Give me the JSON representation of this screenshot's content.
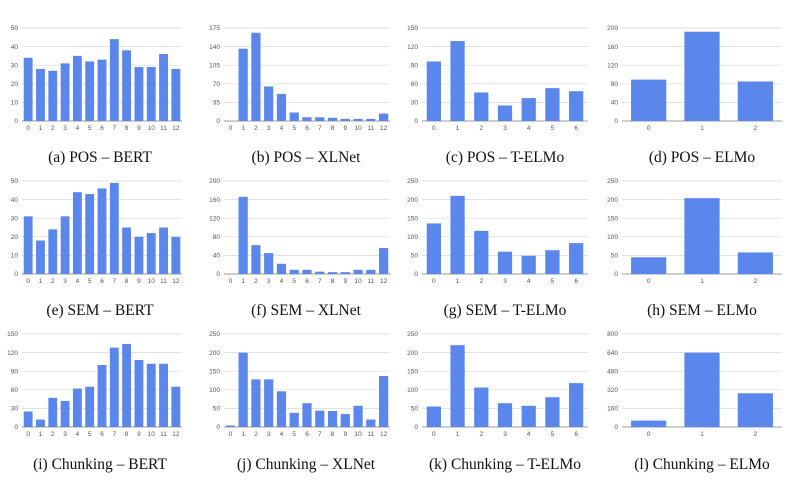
{
  "colors": {
    "bar": "#5b87ec",
    "grid": "#d9d9d9",
    "tick": "#555555",
    "caption": "#111111"
  },
  "chart_data": [
    {
      "type": "bar",
      "caption": "(a) POS – BERT",
      "categories": [
        "0",
        "1",
        "2",
        "3",
        "4",
        "5",
        "6",
        "7",
        "8",
        "9",
        "10",
        "11",
        "12"
      ],
      "values": [
        34,
        28,
        27,
        31,
        35,
        32,
        33,
        44,
        38,
        29,
        29,
        36,
        28
      ],
      "yticks": [
        0,
        10,
        20,
        30,
        40,
        50
      ],
      "ylim": [
        0,
        50
      ],
      "grid": true
    },
    {
      "type": "bar",
      "caption": "(b) POS – XLNet",
      "categories": [
        "0",
        "1",
        "2",
        "3",
        "4",
        "5",
        "6",
        "7",
        "8",
        "9",
        "10",
        "11",
        "12"
      ],
      "values": [
        0,
        136,
        166,
        65,
        51,
        16,
        7,
        7,
        6,
        4,
        4,
        4,
        14
      ],
      "yticks": [
        0,
        35,
        70,
        105,
        140,
        175
      ],
      "ylim": [
        0,
        175
      ],
      "grid": true
    },
    {
      "type": "bar",
      "caption": "(c) POS – T-ELMo",
      "categories": [
        "0",
        "1",
        "2",
        "3",
        "4",
        "5",
        "6"
      ],
      "values": [
        96,
        129,
        46,
        25,
        37,
        53,
        48
      ],
      "yticks": [
        0,
        30,
        60,
        90,
        120,
        150
      ],
      "ylim": [
        0,
        150
      ],
      "grid": true
    },
    {
      "type": "bar",
      "caption": "(d) POS – ELMo",
      "categories": [
        "0",
        "1",
        "2"
      ],
      "values": [
        89,
        192,
        85
      ],
      "yticks": [
        0,
        40,
        80,
        120,
        160,
        200
      ],
      "ylim": [
        0,
        200
      ],
      "grid": true
    },
    {
      "type": "bar",
      "caption": "(e) SEM – BERT",
      "categories": [
        "0",
        "1",
        "2",
        "3",
        "4",
        "5",
        "6",
        "7",
        "8",
        "9",
        "10",
        "11",
        "12"
      ],
      "values": [
        31,
        18,
        24,
        31,
        44,
        43,
        46,
        49,
        25,
        20,
        22,
        25,
        20
      ],
      "yticks": [
        0,
        10,
        20,
        30,
        40,
        50
      ],
      "ylim": [
        0,
        50
      ],
      "grid": true
    },
    {
      "type": "bar",
      "caption": "(f) SEM – XLNet",
      "categories": [
        "0",
        "1",
        "2",
        "3",
        "4",
        "5",
        "6",
        "7",
        "8",
        "9",
        "10",
        "11",
        "12"
      ],
      "values": [
        0,
        166,
        62,
        45,
        22,
        9,
        9,
        5,
        4,
        4,
        9,
        9,
        56
      ],
      "yticks": [
        0,
        40,
        80,
        120,
        160,
        200
      ],
      "ylim": [
        0,
        200
      ],
      "grid": true
    },
    {
      "type": "bar",
      "caption": "(g) SEM – T-ELMo",
      "categories": [
        "0",
        "1",
        "2",
        "3",
        "4",
        "5",
        "6"
      ],
      "values": [
        136,
        210,
        116,
        60,
        49,
        64,
        83
      ],
      "yticks": [
        0,
        50,
        100,
        150,
        200,
        250
      ],
      "ylim": [
        0,
        250
      ],
      "grid": true
    },
    {
      "type": "bar",
      "caption": "(h) SEM – ELMo",
      "categories": [
        "0",
        "1",
        "2"
      ],
      "values": [
        45,
        204,
        58
      ],
      "yticks": [
        0,
        50,
        100,
        150,
        200,
        250
      ],
      "ylim": [
        0,
        250
      ],
      "grid": true
    },
    {
      "type": "bar",
      "caption": "(i) Chunking – BERT",
      "categories": [
        "0",
        "1",
        "2",
        "3",
        "4",
        "5",
        "6",
        "7",
        "8",
        "9",
        "10",
        "11",
        "12"
      ],
      "values": [
        25,
        12,
        47,
        42,
        62,
        65,
        100,
        128,
        134,
        108,
        102,
        102,
        65
      ],
      "yticks": [
        0,
        30,
        60,
        90,
        120,
        150
      ],
      "ylim": [
        0,
        150
      ],
      "grid": true
    },
    {
      "type": "bar",
      "caption": "(j) Chunking – XLNet",
      "categories": [
        "0",
        "1",
        "2",
        "3",
        "4",
        "5",
        "6",
        "7",
        "8",
        "9",
        "10",
        "11",
        "12"
      ],
      "values": [
        4,
        200,
        128,
        128,
        96,
        38,
        64,
        44,
        43,
        35,
        57,
        20,
        137
      ],
      "yticks": [
        0,
        50,
        100,
        150,
        200,
        250
      ],
      "ylim": [
        0,
        250
      ],
      "grid": true
    },
    {
      "type": "bar",
      "caption": "(k) Chunking – T-ELMo",
      "categories": [
        "0",
        "1",
        "2",
        "3",
        "4",
        "5",
        "6"
      ],
      "values": [
        55,
        220,
        106,
        64,
        57,
        80,
        118
      ],
      "yticks": [
        0,
        50,
        100,
        150,
        200,
        250
      ],
      "ylim": [
        0,
        250
      ],
      "grid": true
    },
    {
      "type": "bar",
      "caption": "(l) Chunking – ELMo",
      "categories": [
        "0",
        "1",
        "2"
      ],
      "values": [
        55,
        640,
        290
      ],
      "yticks": [
        0,
        160,
        320,
        480,
        640,
        800
      ],
      "ylim": [
        0,
        800
      ],
      "grid": true
    }
  ]
}
